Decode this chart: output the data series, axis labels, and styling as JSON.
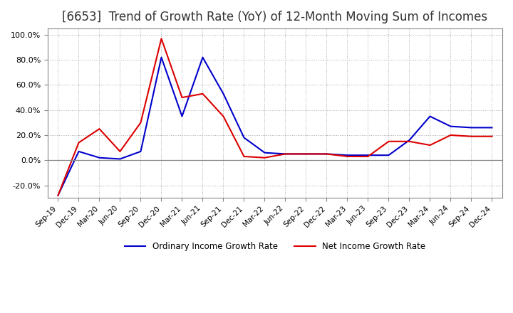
{
  "title": "[6653]  Trend of Growth Rate (YoY) of 12-Month Moving Sum of Incomes",
  "title_fontsize": 12,
  "ylim": [
    -0.3,
    1.05
  ],
  "yticks": [
    -0.2,
    0.0,
    0.2,
    0.4,
    0.6,
    0.8,
    1.0
  ],
  "background_color": "#ffffff",
  "grid_color": "#aaaaaa",
  "ordinary_color": "#0000cc",
  "net_color": "#dd0000",
  "legend_labels": [
    "Ordinary Income Growth Rate",
    "Net Income Growth Rate"
  ],
  "x_labels": [
    "Sep-19",
    "Dec-19",
    "Mar-20",
    "Jun-20",
    "Sep-20",
    "Dec-20",
    "Mar-21",
    "Jun-21",
    "Sep-21",
    "Dec-21",
    "Mar-22",
    "Jun-22",
    "Sep-22",
    "Dec-22",
    "Mar-23",
    "Jun-23",
    "Sep-23",
    "Dec-23",
    "Mar-24",
    "Jun-24",
    "Sep-24",
    "Dec-24"
  ],
  "ordinary_income": [
    -0.28,
    0.07,
    0.02,
    0.01,
    0.07,
    0.82,
    0.35,
    0.82,
    0.53,
    0.18,
    0.06,
    0.05,
    0.05,
    0.05,
    0.04,
    0.04,
    0.04,
    0.16,
    0.35,
    0.27,
    0.26,
    0.26
  ],
  "net_income": [
    -0.28,
    0.14,
    0.25,
    0.07,
    0.3,
    0.97,
    0.5,
    0.53,
    0.35,
    0.03,
    0.02,
    0.05,
    0.05,
    0.05,
    0.03,
    0.03,
    0.15,
    0.15,
    0.12,
    0.2,
    0.19,
    0.19
  ]
}
